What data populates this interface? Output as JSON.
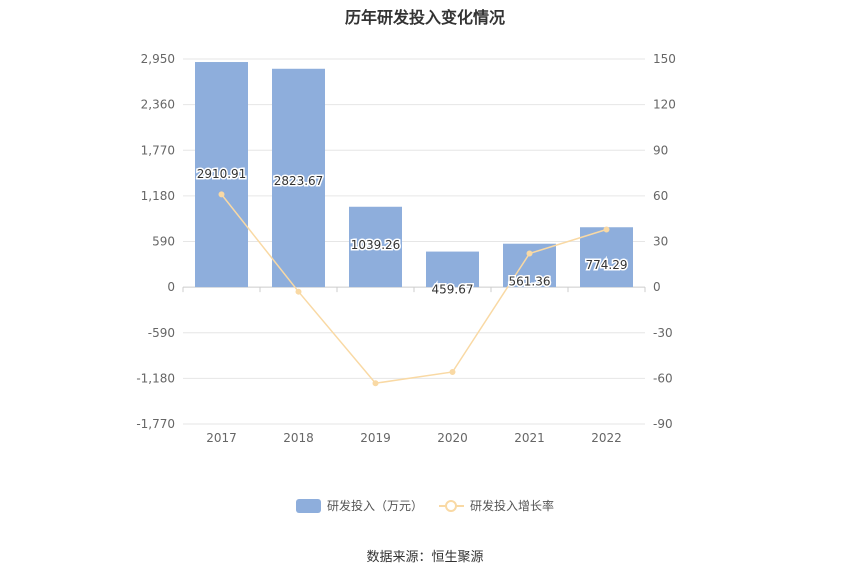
{
  "title": "历年研发投入变化情况",
  "source": "数据来源：恒生聚源",
  "colors": {
    "bar": "#8eaedc",
    "line": "#f9d9a4",
    "axis_text": "#666666",
    "grid": "#e6e6e6"
  },
  "legend": {
    "bar_label": "研发投入（万元）",
    "line_label": "研发投入增长率"
  },
  "chart_data": {
    "type": "bar+line",
    "categories": [
      "2017",
      "2018",
      "2019",
      "2020",
      "2021",
      "2022"
    ],
    "series": [
      {
        "name": "研发投入（万元）",
        "type": "bar",
        "axis": "left",
        "values": [
          2910.91,
          2823.67,
          1039.26,
          459.67,
          561.36,
          774.29
        ],
        "labels": [
          "2910.91",
          "2823.67",
          "1039.26",
          "459.67",
          "561.36",
          "774.29"
        ]
      },
      {
        "name": "研发投入增长率",
        "type": "line",
        "axis": "right",
        "values": [
          61,
          -3,
          -63.2,
          -55.8,
          22.1,
          37.9
        ]
      }
    ],
    "left_axis": {
      "ylim": [
        -1770,
        2950
      ],
      "ticks": [
        2950,
        2360,
        1770,
        1180,
        590,
        0,
        -590,
        -1180,
        -1770
      ],
      "tick_labels": [
        "2,950",
        "2,360",
        "1,770",
        "1,180",
        "590",
        "0",
        "-590",
        "-1,180",
        "-1,770"
      ]
    },
    "right_axis": {
      "ylim": [
        -90,
        150
      ],
      "ticks": [
        150,
        120,
        90,
        60,
        30,
        0,
        -30,
        -60,
        -90
      ],
      "tick_labels": [
        "150",
        "120",
        "90",
        "60",
        "30",
        "0",
        "-30",
        "-60",
        "-90"
      ]
    },
    "grid": true,
    "legend_position": "bottom"
  }
}
